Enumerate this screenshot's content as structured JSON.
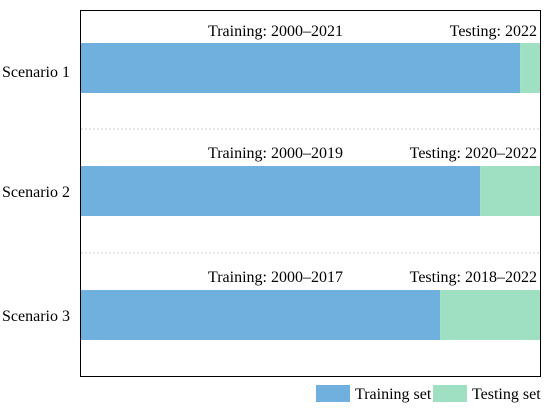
{
  "colors": {
    "training": "#6fb0de",
    "testing": "#9fe0c2",
    "frame": "#000000",
    "separator": "#d0d0d0"
  },
  "timeline": {
    "start_year": 2000,
    "end_year": 2022
  },
  "scenarios": [
    {
      "label": "Scenario 1",
      "training_label": "Training: 2000–2021",
      "testing_label": "Testing: 2022",
      "training_years": [
        2000,
        2021
      ],
      "testing_years": [
        2022,
        2022
      ]
    },
    {
      "label": "Scenario 2",
      "training_label": "Training: 2000–2019",
      "testing_label": "Testing: 2020–2022",
      "training_years": [
        2000,
        2019
      ],
      "testing_years": [
        2020,
        2022
      ]
    },
    {
      "label": "Scenario 3",
      "training_label": "Training: 2000–2017",
      "testing_label": "Testing: 2018–2022",
      "training_years": [
        2000,
        2017
      ],
      "testing_years": [
        2018,
        2022
      ]
    }
  ],
  "legend": {
    "training": "Training set",
    "testing": "Testing set"
  }
}
